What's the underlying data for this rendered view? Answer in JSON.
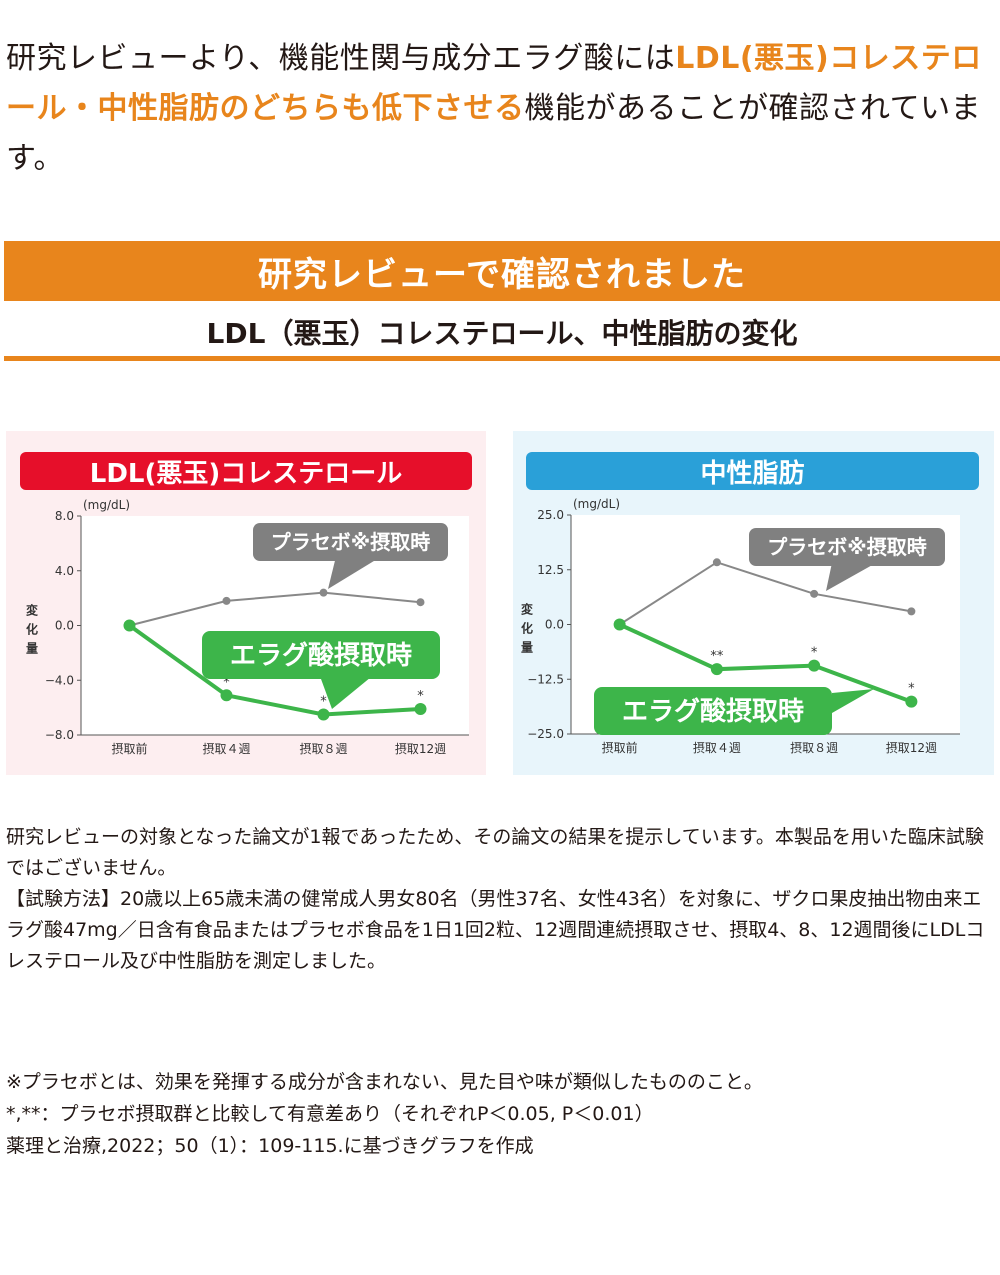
{
  "intro": {
    "part1": "研究レビューより、機能性関与成分エラグ酸には",
    "highlight": "LDL(悪玉)コレステロール・中性脂肪のどちらも低下させる",
    "part2": "機能があることが確認されています。"
  },
  "banner": {
    "label": "研究レビューで確認されました"
  },
  "subheading": "LDL（悪玉）コレステロール、中性脂肪の変化",
  "colors": {
    "accent": "#e8851c",
    "ldl_title_bg": "#e60f2a",
    "tg_title_bg": "#2aa0d8",
    "ellagic_line": "#3db54a",
    "placebo_line": "#888888",
    "callout_gray": "#808080"
  },
  "chart_data": [
    {
      "type": "line",
      "title": "LDL(悪玉)コレステロール",
      "unit": "(mg/dL)",
      "ylabel": "変化量",
      "ylim": [
        -8.0,
        8.0
      ],
      "yticks": [
        "8.0",
        "4.0",
        "0.0",
        "−4.0",
        "−8.0"
      ],
      "categories": [
        "摂取前",
        "摂取４週",
        "摂取８週",
        "摂取12週"
      ],
      "grid": false,
      "series": [
        {
          "name": "プラセボ※摂取時",
          "values": [
            0.0,
            1.8,
            2.4,
            1.7
          ]
        },
        {
          "name": "エラグ酸摂取時",
          "values": [
            0.0,
            -5.1,
            -6.5,
            -6.1
          ],
          "marks": [
            "",
            "*",
            "*",
            "*"
          ]
        }
      ]
    },
    {
      "type": "line",
      "title": "中性脂肪",
      "unit": "(mg/dL)",
      "ylabel": "変化量",
      "ylim": [
        -25.0,
        25.0
      ],
      "yticks": [
        "25.0",
        "12.5",
        "0.0",
        "−12.5",
        "−25.0"
      ],
      "categories": [
        "摂取前",
        "摂取４週",
        "摂取８週",
        "摂取12週"
      ],
      "grid": false,
      "series": [
        {
          "name": "プラセボ※摂取時",
          "values": [
            0.0,
            14.2,
            7.0,
            3.0
          ]
        },
        {
          "name": "エラグ酸摂取時",
          "values": [
            0.0,
            -10.2,
            -9.4,
            -17.6
          ],
          "marks": [
            "",
            "**",
            "*",
            "*"
          ]
        }
      ]
    }
  ],
  "notes": {
    "line1": "研究レビューの対象となった論文が1報であったため、その論文の結果を提示しています。本製品を用いた臨床試験ではございません。",
    "line2": "【試験方法】20歳以上65歳未満の健常成人男女80名（男性37名、女性43名）を対象に、ザクロ果皮抽出物由来エラグ酸47mg／日含有食品またはプラセボ食品を1日1回2粒、12週間連続摂取させ、摂取4、8、12週間後にLDLコレステロール及び中性脂肪を測定しました。"
  },
  "footnotes": {
    "placebo": "※プラセボとは、効果を発揮する成分が含まれない、見た目や味が類似したもののこと。",
    "significance": "*,**：プラセボ摂取群と比較して有意差あり（それぞれP＜0.05, P＜0.01）",
    "source": "薬理と治療,2022；50（1）：109-115.に基づきグラフを作成"
  }
}
